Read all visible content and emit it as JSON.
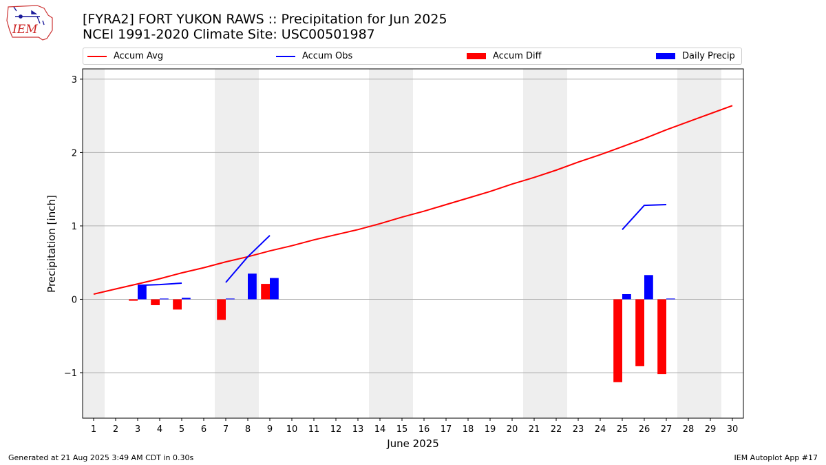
{
  "header": {
    "title_line1": "[FYRA2] FORT YUKON RAWS :: Precipitation for Jun 2025",
    "title_line2": "NCEI 1991-2020 Climate Site: USC00501987",
    "logo_text": "IEM"
  },
  "legend": {
    "items": [
      {
        "label": "Accum Avg",
        "kind": "line",
        "color": "#ff0000"
      },
      {
        "label": "Accum Obs",
        "kind": "line",
        "color": "#0000ff"
      },
      {
        "label": "Accum Diff",
        "kind": "bar",
        "color": "#ff0000"
      },
      {
        "label": "Daily Precip",
        "kind": "bar",
        "color": "#0000ff"
      }
    ]
  },
  "chart_data": {
    "type": "bar",
    "xlabel": "June 2025",
    "ylabel": "Precipitation [inch]",
    "x": [
      1,
      2,
      3,
      4,
      5,
      6,
      7,
      8,
      9,
      10,
      11,
      12,
      13,
      14,
      15,
      16,
      17,
      18,
      19,
      20,
      21,
      22,
      23,
      24,
      25,
      26,
      27,
      28,
      29,
      30
    ],
    "xlim": [
      0.5,
      30.5
    ],
    "ylim": [
      -1.62,
      3.14
    ],
    "yticks": [
      -1,
      0,
      1,
      2,
      3
    ],
    "ytick_labels": [
      "−1",
      "0",
      "1",
      "2",
      "3"
    ],
    "grid": "horizontal",
    "weekend_shading": [
      1,
      7,
      8,
      14,
      15,
      21,
      22,
      28,
      29
    ],
    "series": [
      {
        "name": "Accum Avg",
        "kind": "line",
        "color": "#ff0000",
        "values": [
          0.07,
          0.14,
          0.21,
          0.28,
          0.36,
          0.43,
          0.51,
          0.58,
          0.66,
          0.73,
          0.81,
          0.88,
          0.95,
          1.03,
          1.12,
          1.2,
          1.29,
          1.38,
          1.47,
          1.57,
          1.66,
          1.76,
          1.87,
          1.97,
          2.08,
          2.19,
          2.31,
          2.42,
          2.53,
          2.64
        ]
      },
      {
        "name": "Accum Obs",
        "kind": "line",
        "color": "#0000ff",
        "values": [
          null,
          null,
          0.19,
          0.2,
          0.22,
          null,
          0.23,
          0.58,
          0.87,
          null,
          null,
          null,
          null,
          null,
          null,
          null,
          null,
          null,
          null,
          null,
          null,
          null,
          null,
          null,
          0.95,
          1.28,
          1.29,
          null,
          null,
          null
        ]
      },
      {
        "name": "Accum Diff",
        "kind": "bar",
        "color": "#ff0000",
        "values": [
          null,
          null,
          -0.02,
          -0.08,
          -0.14,
          null,
          -0.28,
          0.0,
          0.21,
          null,
          null,
          null,
          null,
          null,
          null,
          null,
          null,
          null,
          null,
          null,
          null,
          null,
          null,
          null,
          -1.13,
          -0.91,
          -1.02,
          null,
          null,
          null
        ]
      },
      {
        "name": "Daily Precip",
        "kind": "bar",
        "color": "#0000ff",
        "values": [
          null,
          null,
          0.19,
          0.01,
          0.02,
          null,
          0.01,
          0.35,
          0.29,
          null,
          null,
          null,
          null,
          null,
          null,
          null,
          null,
          null,
          null,
          null,
          null,
          null,
          null,
          null,
          0.07,
          0.33,
          0.01,
          null,
          null,
          null
        ]
      }
    ]
  },
  "footer": {
    "left": "Generated at 21 Aug 2025 3:49 AM CDT in 0.30s",
    "right": "IEM Autoplot App #17"
  }
}
